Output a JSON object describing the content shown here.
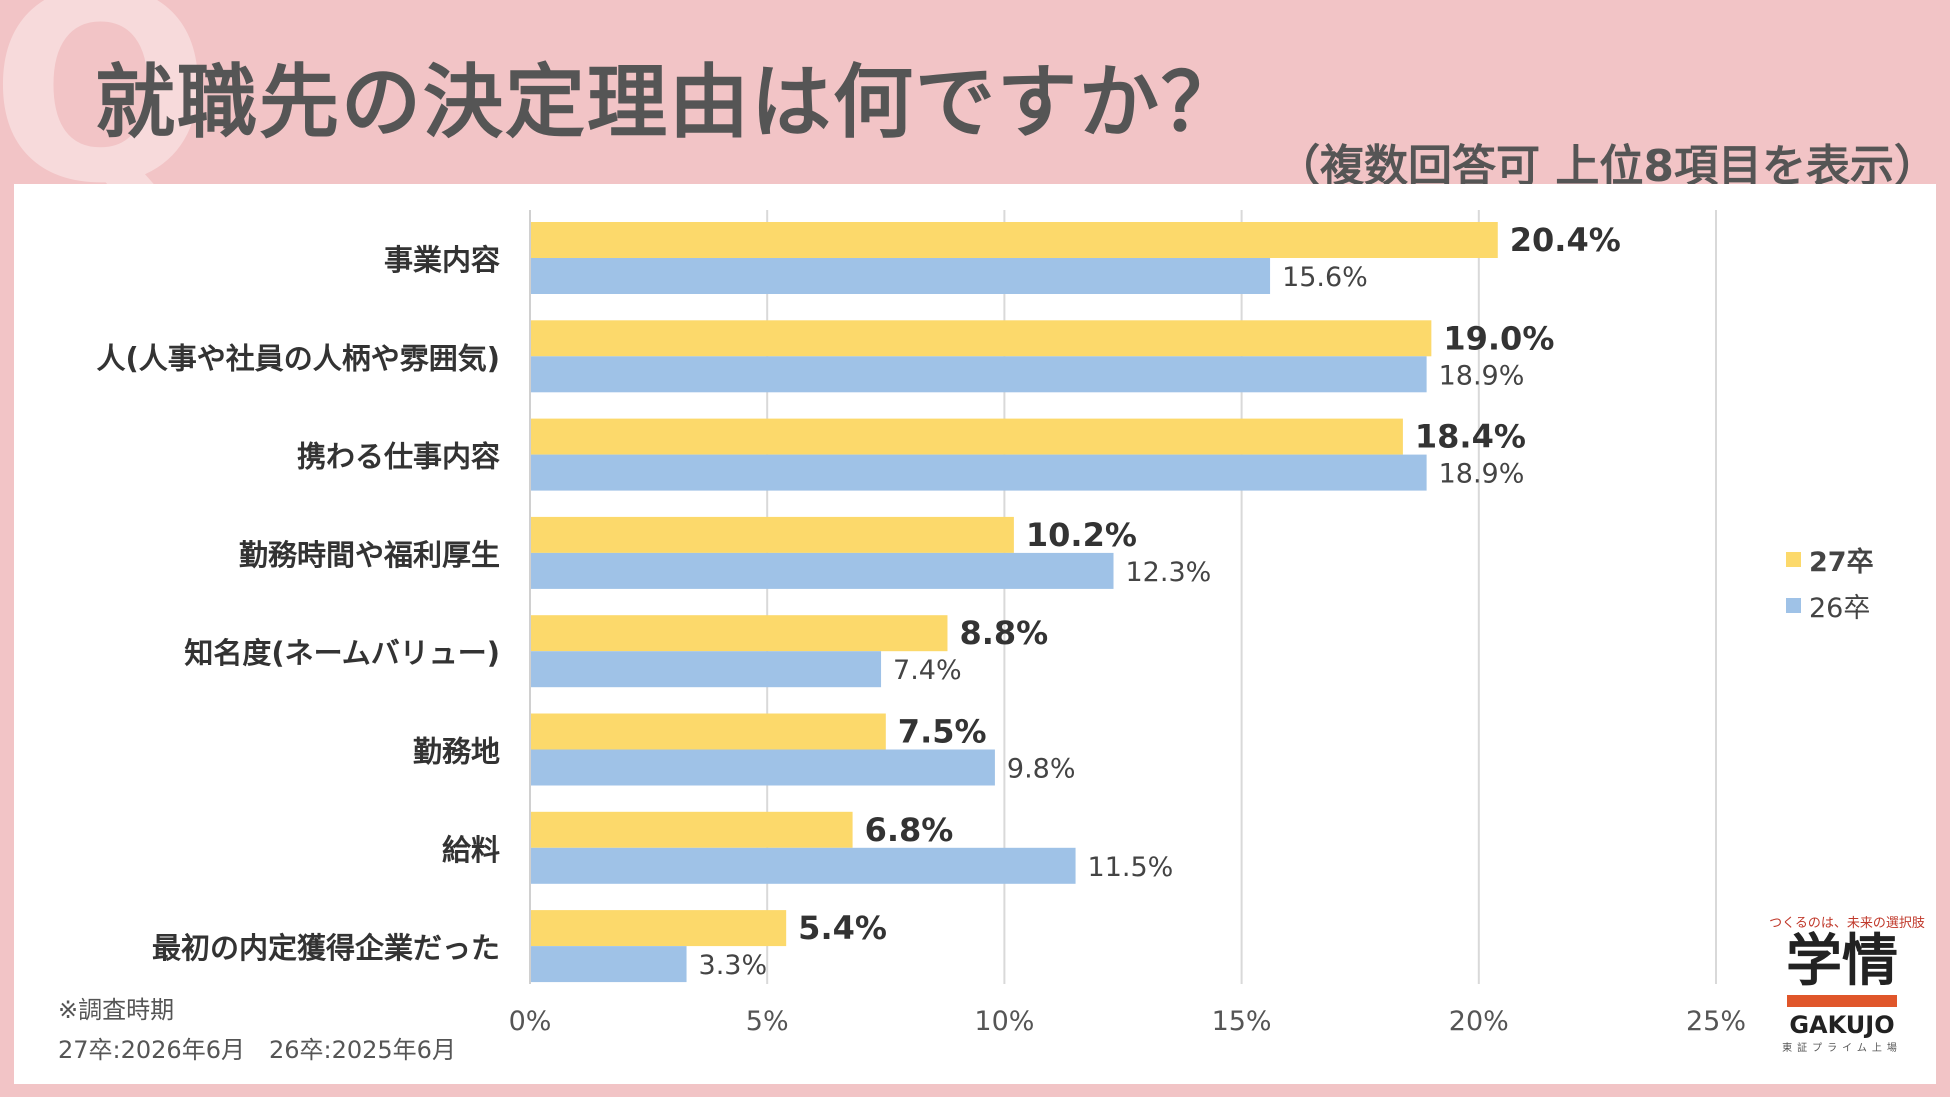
{
  "header": {
    "q_mark": "Q",
    "title": "就職先の決定理由は何ですか？",
    "subtitle": "（複数回答可 上位8項目を表示）"
  },
  "colors": {
    "series_27": "#fcd96b",
    "series_26": "#9fc2e7",
    "background": "#f2c4c6"
  },
  "legend": {
    "series_27": "27卒",
    "series_26": "26卒"
  },
  "survey": {
    "heading": "※調査時期",
    "period": "27卒:2026年6月　26卒:2025年6月"
  },
  "logo": {
    "tagline": "つくるのは、未来の選択肢",
    "mark": "学情",
    "name": "GAKUJO",
    "sub": "東証プライム上場"
  },
  "chart_data": {
    "type": "bar",
    "orientation": "horizontal",
    "categories": [
      "事業内容",
      "人(人事や社員の人柄や雰囲気)",
      "携わる仕事内容",
      "勤務時間や福利厚生",
      "知名度(ネームバリュー)",
      "勤務地",
      "給料",
      "最初の内定獲得企業だった"
    ],
    "series": [
      {
        "name": "27卒",
        "values": [
          20.4,
          19.0,
          18.4,
          10.2,
          8.8,
          7.5,
          6.8,
          5.4
        ]
      },
      {
        "name": "26卒",
        "values": [
          15.6,
          18.9,
          18.9,
          12.3,
          7.4,
          9.8,
          11.5,
          3.3
        ]
      }
    ],
    "xlim": [
      0,
      25
    ],
    "xticks": [
      0,
      5,
      10,
      15,
      20,
      25
    ],
    "unit": "%",
    "grid": true,
    "legend_position": "right"
  }
}
